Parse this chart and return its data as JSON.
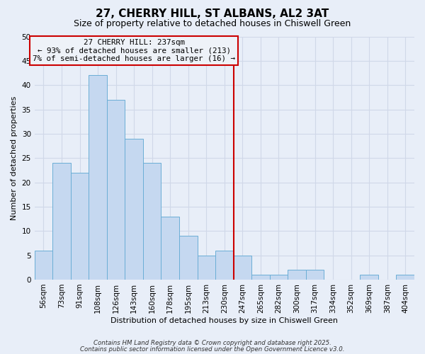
{
  "title": "27, CHERRY HILL, ST ALBANS, AL2 3AT",
  "subtitle": "Size of property relative to detached houses in Chiswell Green",
  "xlabel": "Distribution of detached houses by size in Chiswell Green",
  "ylabel": "Number of detached properties",
  "bar_labels": [
    "56sqm",
    "73sqm",
    "91sqm",
    "108sqm",
    "126sqm",
    "143sqm",
    "160sqm",
    "178sqm",
    "195sqm",
    "213sqm",
    "230sqm",
    "247sqm",
    "265sqm",
    "282sqm",
    "300sqm",
    "317sqm",
    "334sqm",
    "352sqm",
    "369sqm",
    "387sqm",
    "404sqm"
  ],
  "bar_values": [
    6,
    24,
    22,
    42,
    37,
    29,
    24,
    13,
    9,
    5,
    6,
    5,
    1,
    1,
    2,
    2,
    0,
    0,
    1,
    0,
    1
  ],
  "bar_color": "#c5d8f0",
  "bar_edgecolor": "#6baed6",
  "vline_color": "#cc0000",
  "annotation_text": "27 CHERRY HILL: 237sqm\n← 93% of detached houses are smaller (213)\n7% of semi-detached houses are larger (16) →",
  "annotation_box_edgecolor": "#cc0000",
  "annotation_box_facecolor": "#eef2f8",
  "ylim": [
    0,
    50
  ],
  "yticks": [
    0,
    5,
    10,
    15,
    20,
    25,
    30,
    35,
    40,
    45,
    50
  ],
  "footer1": "Contains HM Land Registry data © Crown copyright and database right 2025.",
  "footer2": "Contains public sector information licensed under the Open Government Licence v3.0.",
  "bg_color": "#e8eef8",
  "grid_color": "#d0d8e8",
  "title_fontsize": 11,
  "subtitle_fontsize": 9,
  "ylabel_fontsize": 8,
  "xlabel_fontsize": 8,
  "tick_fontsize": 7.5
}
